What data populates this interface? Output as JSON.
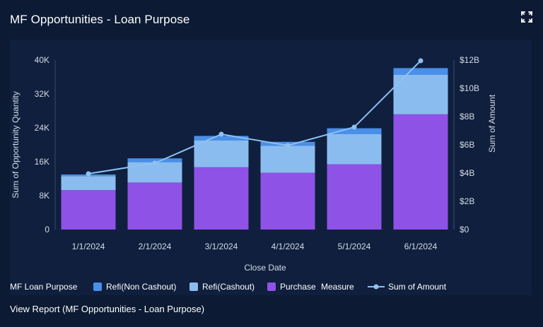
{
  "header": {
    "title": "MF Opportunities - Loan Purpose",
    "expand_icon": "expand-icon"
  },
  "footer": {
    "view_report_label": "View Report (MF Opportunities - Loan Purpose)"
  },
  "colors": {
    "background": "#0c1a33",
    "plot_background": "#0f1f3d",
    "refi_non_cashout": "#4a8fe8",
    "refi_cashout": "#8bbcf0",
    "purchase": "#8e52e6",
    "sum_of_amount": "#8ec1f2",
    "axis_text": "#d5dbe8"
  },
  "chart_data": {
    "type": "bar",
    "stacked": true,
    "categories": [
      "1/1/2024",
      "2/1/2024",
      "3/1/2024",
      "4/1/2024",
      "5/1/2024",
      "6/1/2024"
    ],
    "xlabel": "Close Date",
    "ylabel": "Sum of Opportunity Quantity",
    "ylabel_right": "Sum of Amount",
    "ylim": [
      0,
      40000
    ],
    "ylim_right": [
      0,
      12000000000
    ],
    "yticks": [
      {
        "value": 0,
        "label": "0"
      },
      {
        "value": 8000,
        "label": "8K"
      },
      {
        "value": 16000,
        "label": "16K"
      },
      {
        "value": 24000,
        "label": "24K"
      },
      {
        "value": 32000,
        "label": "32K"
      },
      {
        "value": 40000,
        "label": "40K"
      }
    ],
    "yticks_right": [
      {
        "value": 0,
        "label": "$0"
      },
      {
        "value": 2000000000,
        "label": "$2B"
      },
      {
        "value": 4000000000,
        "label": "$4B"
      },
      {
        "value": 6000000000,
        "label": "$6B"
      },
      {
        "value": 8000000000,
        "label": "$8B"
      },
      {
        "value": 10000000000,
        "label": "$10B"
      },
      {
        "value": 12000000000,
        "label": "$12B"
      }
    ],
    "series": [
      {
        "name": "Purchase",
        "kind": "bar",
        "values": [
          9300,
          11100,
          14700,
          13400,
          15400,
          27200
        ]
      },
      {
        "name": "Refi(Cashout)",
        "kind": "bar",
        "values": [
          3300,
          4800,
          6300,
          6400,
          7100,
          9300
        ]
      },
      {
        "name": "Refi(Non Cashout)",
        "kind": "bar",
        "values": [
          400,
          900,
          1100,
          900,
          1400,
          1600
        ]
      },
      {
        "name": "Sum of Amount",
        "kind": "line",
        "axis": "right",
        "values": [
          3950000000,
          4700000000,
          6750000000,
          5950000000,
          7250000000,
          11950000000
        ]
      }
    ],
    "legend": {
      "position": "bottom",
      "title": "MF Loan Purpose",
      "items": [
        "Refi(Non Cashout)",
        "Refi(Cashout)",
        "Purchase"
      ],
      "measure_title": "Measure",
      "measure_items": [
        "Sum of Amount"
      ]
    },
    "grid": false
  }
}
